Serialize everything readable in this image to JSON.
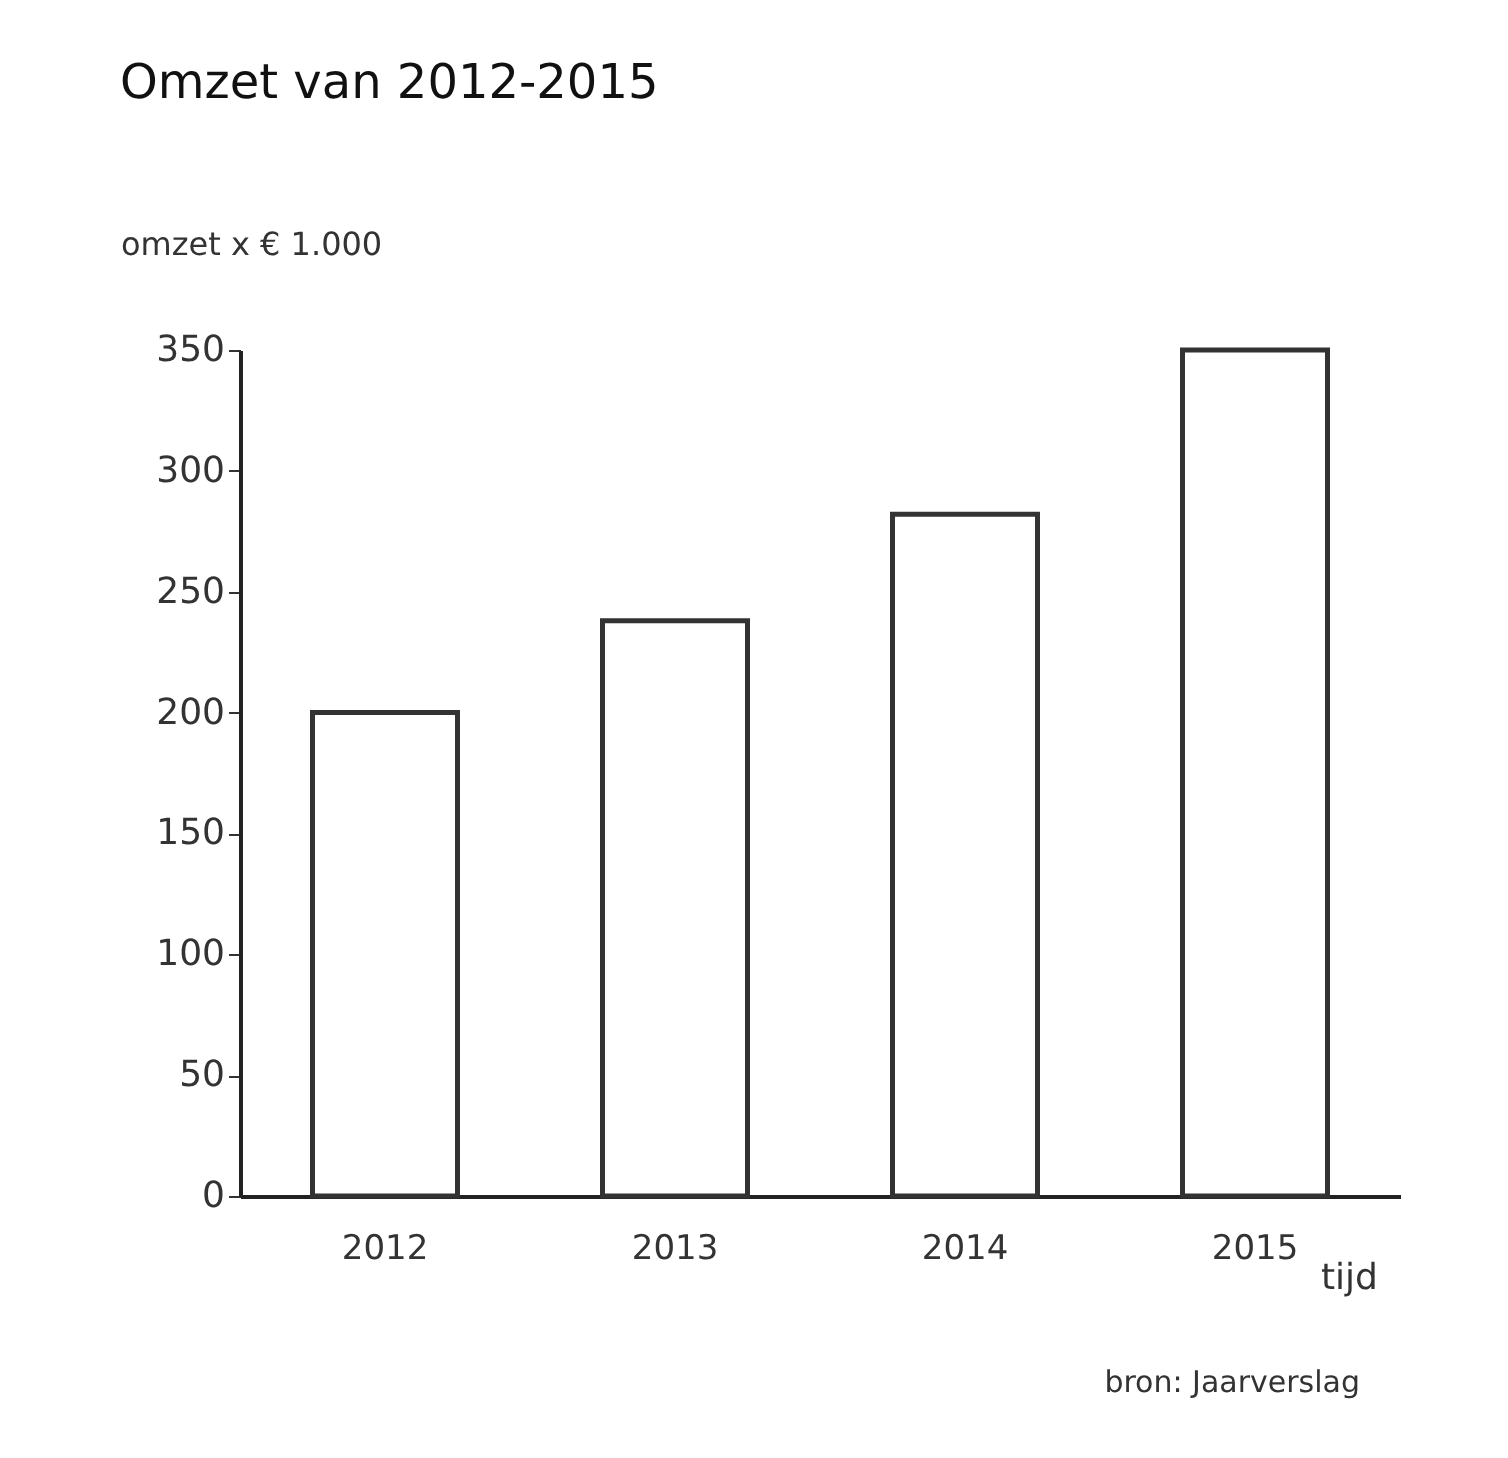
{
  "chart_data": {
    "type": "bar",
    "title": "Omzet van 2012-2015",
    "ylabel": "omzet x € 1.000",
    "xlabel": "tijd",
    "categories": [
      "2012",
      "2013",
      "2014",
      "2015"
    ],
    "values": [
      200,
      238,
      282,
      350
    ],
    "color": "#333333",
    "ylim": [
      0,
      350
    ],
    "yticks": [
      0,
      50,
      100,
      150,
      200,
      250,
      300,
      350
    ],
    "annotations": [
      "bron: Jaarverslag"
    ]
  }
}
